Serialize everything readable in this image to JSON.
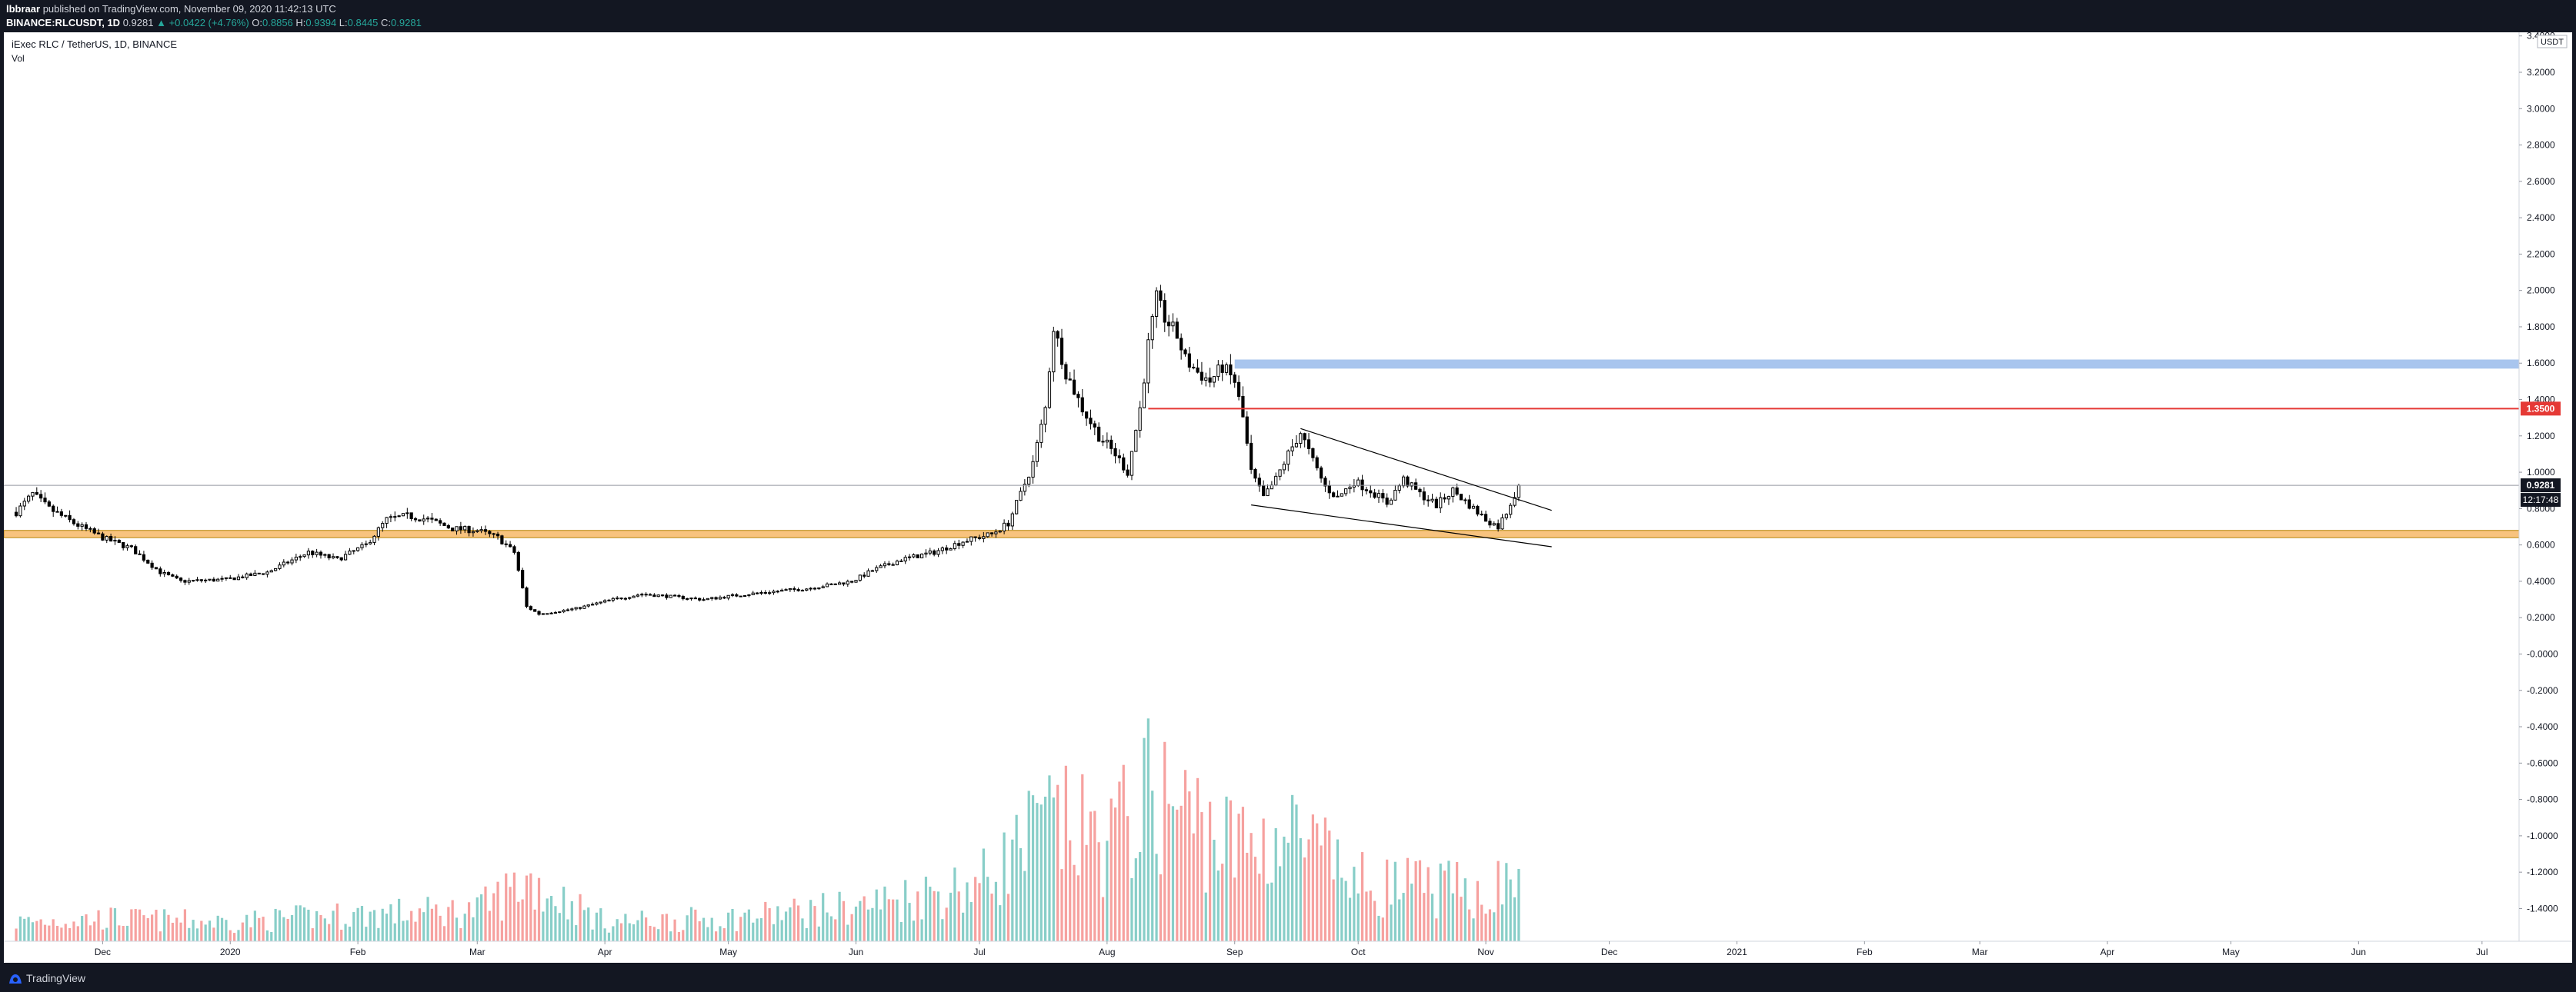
{
  "header": {
    "author": "lbbraar",
    "published_text": "published on TradingView.com, November 09, 2020 11:42:13 UTC",
    "symbol": "BINANCE:RLCUSDT, 1D",
    "last": "0.9281",
    "change": "+0.0422 (+4.76%)",
    "open_label": "O:",
    "open": "0.8856",
    "high_label": "H:",
    "high": "0.9394",
    "low_label": "L:",
    "low": "0.8445",
    "close_label": "C:",
    "close": "0.9281"
  },
  "chart_data": {
    "type": "candlestick",
    "title": "iExec RLC / TetherUS, 1D, BINANCE",
    "volume_label": "Vol",
    "currency": "USDT",
    "y_ticks": [
      "-1.4000",
      "-1.2000",
      "-1.0000",
      "-0.8000",
      "-0.6000",
      "-0.4000",
      "-0.2000",
      "-0.0000",
      "0.2000",
      "0.4000",
      "0.6000",
      "0.8000",
      "1.0000",
      "1.2000",
      "1.4000",
      "1.6000",
      "1.8000",
      "2.0000",
      "2.2000",
      "2.4000",
      "2.6000",
      "2.8000",
      "3.0000",
      "3.2000",
      "3.4000"
    ],
    "y_range": [
      -1.58,
      3.42
    ],
    "x_ticks": [
      "Dec",
      "2020",
      "Feb",
      "Mar",
      "Apr",
      "May",
      "Jun",
      "Jul",
      "Aug",
      "Sep",
      "Oct",
      "Nov",
      "Dec",
      "2021",
      "Feb",
      "Mar",
      "Apr",
      "May",
      "Jun",
      "Jul"
    ],
    "x_tick_dates": [
      "2019-12-01",
      "2020-01-01",
      "2020-02-01",
      "2020-03-01",
      "2020-04-01",
      "2020-05-01",
      "2020-06-01",
      "2020-07-01",
      "2020-08-01",
      "2020-09-01",
      "2020-10-01",
      "2020-11-01",
      "2020-12-01",
      "2021-01-01",
      "2021-02-01",
      "2021-03-01",
      "2021-04-01",
      "2021-05-01",
      "2021-06-01",
      "2021-07-01"
    ],
    "x_range": [
      "2019-11-07",
      "2021-07-10"
    ],
    "price_anchors": [
      [
        "2019-11-10",
        0.78
      ],
      [
        "2019-11-14",
        0.88
      ],
      [
        "2019-11-18",
        0.8
      ],
      [
        "2019-11-24",
        0.72
      ],
      [
        "2019-12-01",
        0.64
      ],
      [
        "2019-12-08",
        0.58
      ],
      [
        "2019-12-15",
        0.45
      ],
      [
        "2019-12-20",
        0.4
      ],
      [
        "2019-12-31",
        0.41
      ],
      [
        "2020-01-10",
        0.45
      ],
      [
        "2020-01-20",
        0.56
      ],
      [
        "2020-01-27",
        0.52
      ],
      [
        "2020-02-03",
        0.6
      ],
      [
        "2020-02-08",
        0.74
      ],
      [
        "2020-02-13",
        0.76
      ],
      [
        "2020-02-18",
        0.74
      ],
      [
        "2020-02-24",
        0.69
      ],
      [
        "2020-03-01",
        0.68
      ],
      [
        "2020-03-06",
        0.64
      ],
      [
        "2020-03-10",
        0.56
      ],
      [
        "2020-03-13",
        0.26
      ],
      [
        "2020-03-16",
        0.22
      ],
      [
        "2020-03-25",
        0.25
      ],
      [
        "2020-04-03",
        0.3
      ],
      [
        "2020-04-10",
        0.33
      ],
      [
        "2020-04-25",
        0.3
      ],
      [
        "2020-05-02",
        0.32
      ],
      [
        "2020-05-10",
        0.34
      ],
      [
        "2020-05-20",
        0.36
      ],
      [
        "2020-05-31",
        0.4
      ],
      [
        "2020-06-05",
        0.46
      ],
      [
        "2020-06-12",
        0.52
      ],
      [
        "2020-06-20",
        0.56
      ],
      [
        "2020-06-27",
        0.62
      ],
      [
        "2020-07-04",
        0.66
      ],
      [
        "2020-07-08",
        0.72
      ],
      [
        "2020-07-11",
        0.88
      ],
      [
        "2020-07-14",
        1.05
      ],
      [
        "2020-07-17",
        1.35
      ],
      [
        "2020-07-19",
        1.8
      ],
      [
        "2020-07-22",
        1.55
      ],
      [
        "2020-07-26",
        1.35
      ],
      [
        "2020-07-30",
        1.2
      ],
      [
        "2020-08-03",
        1.1
      ],
      [
        "2020-08-06",
        1.0
      ],
      [
        "2020-08-09",
        1.35
      ],
      [
        "2020-08-11",
        1.7
      ],
      [
        "2020-08-13",
        1.95
      ],
      [
        "2020-08-15",
        1.85
      ],
      [
        "2020-08-18",
        1.75
      ],
      [
        "2020-08-20",
        1.62
      ],
      [
        "2020-08-23",
        1.55
      ],
      [
        "2020-08-26",
        1.5
      ],
      [
        "2020-08-29",
        1.58
      ],
      [
        "2020-09-01",
        1.5
      ],
      [
        "2020-09-03",
        1.3
      ],
      [
        "2020-09-05",
        1.0
      ],
      [
        "2020-09-08",
        0.86
      ],
      [
        "2020-09-11",
        0.96
      ],
      [
        "2020-09-14",
        1.1
      ],
      [
        "2020-09-17",
        1.22
      ],
      [
        "2020-09-20",
        1.06
      ],
      [
        "2020-09-23",
        0.92
      ],
      [
        "2020-09-26",
        0.86
      ],
      [
        "2020-09-30",
        0.95
      ],
      [
        "2020-10-04",
        0.9
      ],
      [
        "2020-10-08",
        0.83
      ],
      [
        "2020-10-12",
        0.96
      ],
      [
        "2020-10-16",
        0.88
      ],
      [
        "2020-10-20",
        0.82
      ],
      [
        "2020-10-24",
        0.9
      ],
      [
        "2020-10-28",
        0.82
      ],
      [
        "2020-11-01",
        0.74
      ],
      [
        "2020-11-04",
        0.7
      ],
      [
        "2020-11-06",
        0.78
      ],
      [
        "2020-11-09",
        0.93
      ]
    ],
    "volume_anchors": [
      [
        "2019-11-10",
        0.1
      ],
      [
        "2019-12-01",
        0.12
      ],
      [
        "2020-01-01",
        0.1
      ],
      [
        "2020-02-01",
        0.14
      ],
      [
        "2020-03-01",
        0.16
      ],
      [
        "2020-03-13",
        0.32
      ],
      [
        "2020-04-01",
        0.1
      ],
      [
        "2020-05-01",
        0.12
      ],
      [
        "2020-06-01",
        0.18
      ],
      [
        "2020-07-01",
        0.3
      ],
      [
        "2020-07-18",
        0.62
      ],
      [
        "2020-08-01",
        0.52
      ],
      [
        "2020-08-12",
        0.78
      ],
      [
        "2020-09-01",
        0.5
      ],
      [
        "2020-09-15",
        0.55
      ],
      [
        "2020-10-01",
        0.3
      ],
      [
        "2020-11-01",
        0.26
      ],
      [
        "2020-11-09",
        0.32
      ]
    ],
    "last_price": 0.9281,
    "last_price_label": "0.9281",
    "countdown_label": "12:17:48",
    "resistance_level": 1.35,
    "resistance_label": "1.3500",
    "resistance_start": "2020-08-11",
    "supply_zone": {
      "from": 1.57,
      "to": 1.62,
      "start": "2020-09-01"
    },
    "support_zone": {
      "from": 0.64,
      "to": 0.68,
      "start": "2019-11-07"
    },
    "wedge_upper": [
      [
        "2020-09-17",
        1.24
      ],
      [
        "2020-11-17",
        0.79
      ]
    ],
    "wedge_lower": [
      [
        "2020-09-05",
        0.82
      ],
      [
        "2020-11-17",
        0.59
      ]
    ],
    "colors": {
      "up": "#26a69a",
      "down": "#ef5350",
      "resistance": "#e53935",
      "supply": "#a8c5ee",
      "support": "#f8c37e",
      "candle": "#000000"
    }
  },
  "footer": {
    "brand": "TradingView"
  }
}
